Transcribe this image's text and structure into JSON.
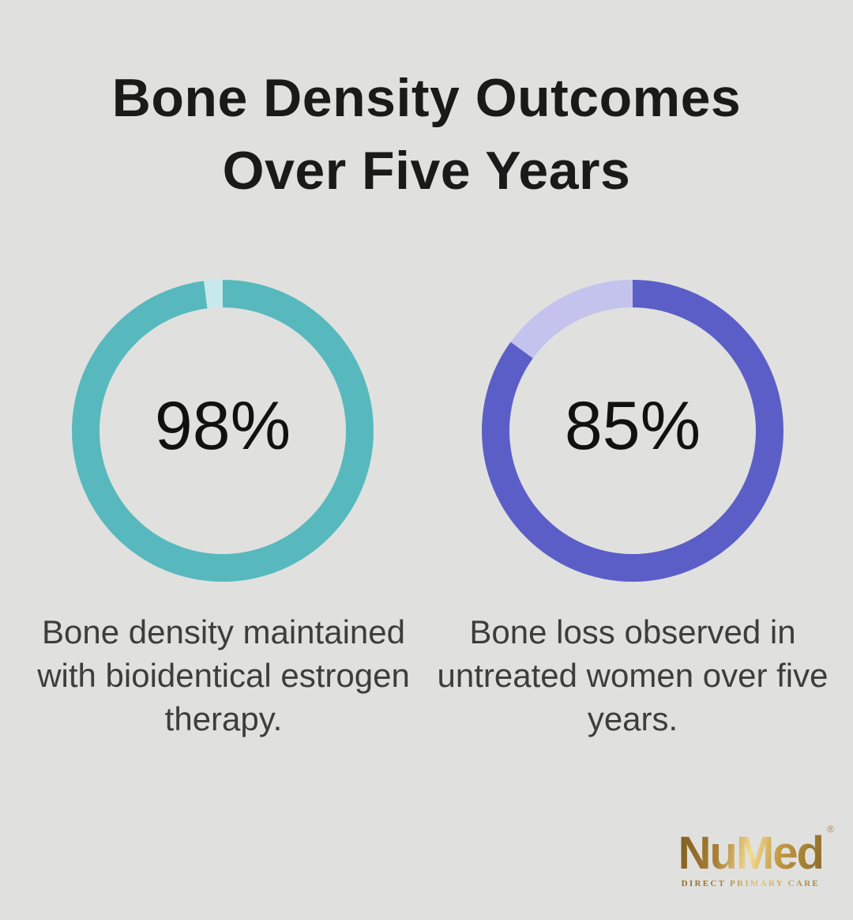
{
  "page": {
    "background_color": "#e0e1df"
  },
  "title": {
    "text": "Bone Density Outcomes Over Five Years",
    "line1": "Bone Density Outcomes",
    "line2": "Over Five Years",
    "color": "#1a1a1a"
  },
  "chart_data": [
    {
      "type": "pie",
      "subtype": "donut",
      "center_label": "98%",
      "caption": "Bone density maintained with bioidentical estrogen therapy.",
      "series": [
        {
          "name": "Bone density maintained with bioidentical estrogen therapy",
          "value": 98
        },
        {
          "name": "remainder",
          "value": 2
        }
      ],
      "colors": {
        "segment": "#57b9bd",
        "remainder": "#c8e9eb"
      },
      "start_angle_deg": 0,
      "direction": "clockwise",
      "legend": "none"
    },
    {
      "type": "pie",
      "subtype": "donut",
      "center_label": "85%",
      "caption": "Bone loss observed in untreated women over five years.",
      "series": [
        {
          "name": "Bone loss observed in untreated women over five years",
          "value": 85
        },
        {
          "name": "remainder",
          "value": 15
        }
      ],
      "colors": {
        "segment": "#5c5ec7",
        "remainder": "#c4c3ed"
      },
      "start_angle_deg": 0,
      "direction": "clockwise",
      "legend": "none"
    }
  ],
  "logo": {
    "brand": "NuMed",
    "registered_mark": "®",
    "tagline": "DIRECT PRIMARY CARE",
    "gold_dark": "#8c6a26",
    "gold_light": "#f3dc92"
  }
}
